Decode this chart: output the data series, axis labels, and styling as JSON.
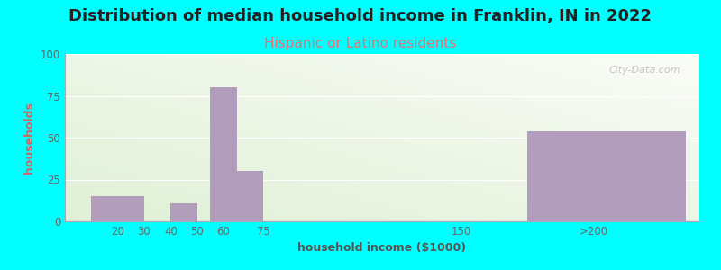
{
  "title": "Distribution of median household income in Franklin, IN in 2022",
  "subtitle": "Hispanic or Latino residents",
  "xlabel": "household income ($1000)",
  "ylabel": "households",
  "background_color": "#00FFFF",
  "bar_color": "#b39dbd",
  "title_fontsize": 13,
  "subtitle_fontsize": 11,
  "subtitle_color": "#e87070",
  "title_color": "#222222",
  "axis_label_fontsize": 9,
  "tick_fontsize": 8.5,
  "tick_color": "#666666",
  "ylim": [
    0,
    100
  ],
  "yticks": [
    0,
    25,
    50,
    75,
    100
  ],
  "bar_lefts": [
    10,
    30,
    40,
    50,
    55,
    65,
    100,
    175
  ],
  "bar_rights": [
    30,
    40,
    50,
    55,
    65,
    75,
    125,
    235
  ],
  "bar_heights": [
    15,
    0,
    11,
    0,
    80,
    30,
    0,
    54
  ],
  "xtick_values": [
    20,
    30,
    40,
    50,
    60,
    75,
    150,
    200
  ],
  "xtick_labels": [
    "20",
    "30",
    "40",
    "50",
    "60",
    "75",
    "150",
    ">200"
  ],
  "xlim": [
    0,
    240
  ],
  "watermark": "City-Data.com",
  "grid_color": "#ffffff",
  "ylabel_color": "#cc6666"
}
